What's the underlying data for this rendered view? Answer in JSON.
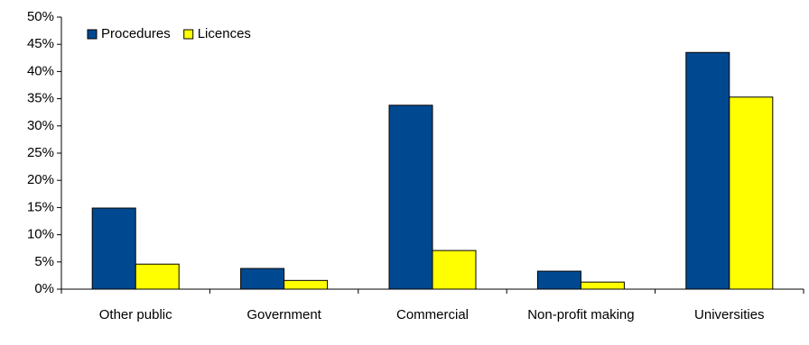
{
  "chart_data": {
    "type": "bar",
    "categories": [
      "Other public",
      "Government",
      "Commercial",
      "Non-profit making",
      "Universities"
    ],
    "series": [
      {
        "name": "Procedures",
        "color": "#004990",
        "values": [
          14.9,
          3.8,
          33.8,
          3.3,
          43.5
        ]
      },
      {
        "name": "Licences",
        "color": "#ffff00",
        "values": [
          4.6,
          1.6,
          7.1,
          1.3,
          35.3
        ]
      }
    ],
    "ylim": [
      0,
      50
    ],
    "yticks": [
      {
        "value": 0,
        "label": "0%"
      },
      {
        "value": 5,
        "label": "5%"
      },
      {
        "value": 10,
        "label": "10%"
      },
      {
        "value": 15,
        "label": "15%"
      },
      {
        "value": 20,
        "label": "20%"
      },
      {
        "value": 25,
        "label": "25%"
      },
      {
        "value": 30,
        "label": "30%"
      },
      {
        "value": 35,
        "label": "35%"
      },
      {
        "value": 40,
        "label": "40%"
      },
      {
        "value": 45,
        "label": "45%"
      },
      {
        "value": 50,
        "label": "50%"
      }
    ],
    "legend": "top-left"
  }
}
